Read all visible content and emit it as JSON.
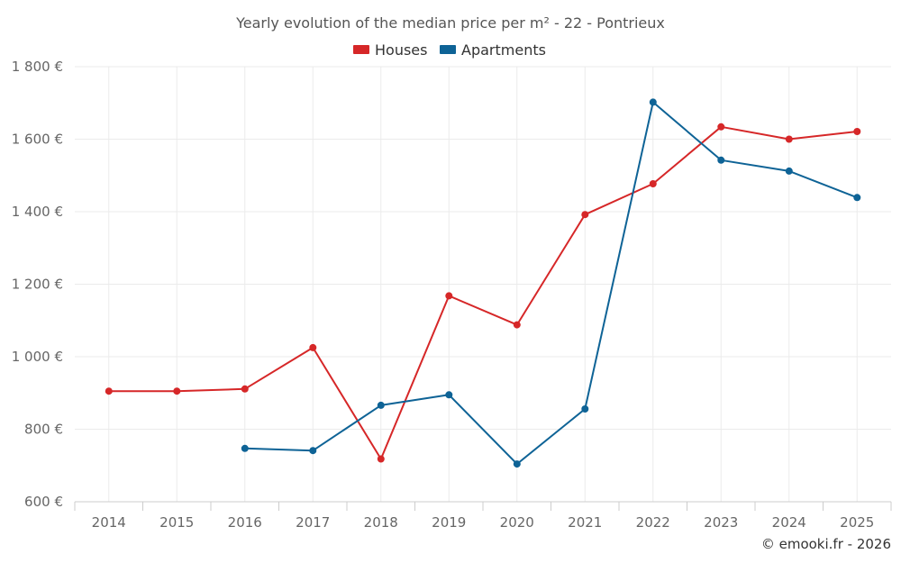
{
  "chart_data": {
    "type": "line",
    "title": "Yearly evolution of the median price per m² - 22 - Pontrieux",
    "categories": [
      "2014",
      "2015",
      "2016",
      "2017",
      "2018",
      "2019",
      "2020",
      "2021",
      "2022",
      "2023",
      "2024",
      "2025"
    ],
    "y_ticks": [
      "600 €",
      "800 €",
      "1 000 €",
      "1 200 €",
      "1 400 €",
      "1 600 €",
      "1 800 €"
    ],
    "y_tick_values": [
      600,
      800,
      1000,
      1200,
      1400,
      1600,
      1800
    ],
    "ylim": [
      600,
      1800
    ],
    "xlabel": "",
    "ylabel": "",
    "grid": true,
    "legend_position": "top-center",
    "series": [
      {
        "name": "Houses",
        "color": "#d62728",
        "values": [
          905,
          905,
          911,
          1025,
          718,
          1168,
          1088,
          1392,
          1477,
          1634,
          1600,
          1621
        ]
      },
      {
        "name": "Apartments",
        "color": "#0e6396",
        "values": [
          null,
          null,
          747,
          741,
          866,
          895,
          704,
          856,
          1702,
          1542,
          1512,
          1439
        ]
      }
    ],
    "credit": "© emooki.fr - 2026"
  }
}
